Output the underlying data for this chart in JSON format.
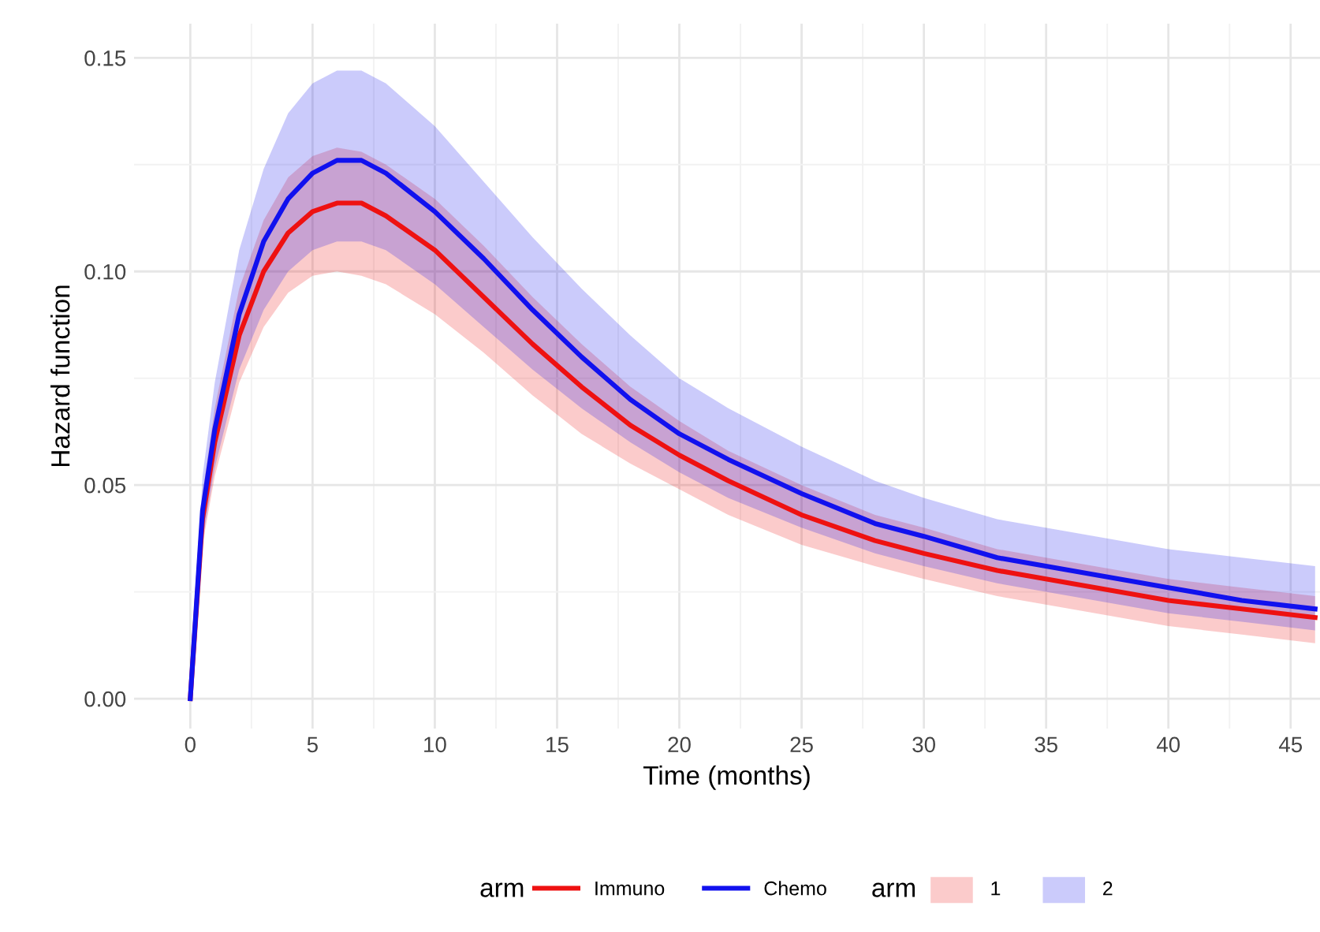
{
  "chart_data": {
    "type": "line",
    "xlabel": "Time (months)",
    "ylabel": "Hazard function",
    "legend_title": "arm",
    "x": [
      0,
      0.5,
      1,
      2,
      3,
      4,
      5,
      6,
      7,
      8,
      10,
      12,
      14,
      16,
      18,
      20,
      22,
      25,
      28,
      30,
      33,
      36,
      40,
      43,
      46
    ],
    "series": [
      {
        "name": "Immuno",
        "color": "#ee1111",
        "values": [
          0,
          0.042,
          0.06,
          0.085,
          0.1,
          0.109,
          0.114,
          0.116,
          0.116,
          0.113,
          0.105,
          0.094,
          0.083,
          0.073,
          0.064,
          0.057,
          0.051,
          0.043,
          0.037,
          0.034,
          0.03,
          0.027,
          0.023,
          0.021,
          0.019
        ],
        "upper": [
          0,
          0.048,
          0.068,
          0.096,
          0.112,
          0.122,
          0.127,
          0.129,
          0.128,
          0.125,
          0.117,
          0.106,
          0.094,
          0.083,
          0.073,
          0.065,
          0.058,
          0.05,
          0.043,
          0.04,
          0.035,
          0.032,
          0.028,
          0.026,
          0.024
        ],
        "lower": [
          0,
          0.036,
          0.052,
          0.074,
          0.087,
          0.095,
          0.099,
          0.1,
          0.099,
          0.097,
          0.09,
          0.081,
          0.071,
          0.062,
          0.055,
          0.049,
          0.043,
          0.036,
          0.031,
          0.028,
          0.024,
          0.021,
          0.017,
          0.015,
          0.013
        ]
      },
      {
        "name": "Chemo",
        "color": "#1111ee",
        "values": [
          0,
          0.044,
          0.063,
          0.09,
          0.107,
          0.117,
          0.123,
          0.126,
          0.126,
          0.123,
          0.114,
          0.103,
          0.091,
          0.08,
          0.07,
          0.062,
          0.056,
          0.048,
          0.041,
          0.038,
          0.033,
          0.03,
          0.026,
          0.023,
          0.021
        ],
        "upper": [
          0,
          0.052,
          0.074,
          0.105,
          0.124,
          0.137,
          0.144,
          0.147,
          0.147,
          0.144,
          0.134,
          0.121,
          0.108,
          0.096,
          0.085,
          0.075,
          0.068,
          0.059,
          0.051,
          0.047,
          0.042,
          0.039,
          0.035,
          0.033,
          0.031
        ],
        "lower": [
          0,
          0.037,
          0.054,
          0.077,
          0.091,
          0.1,
          0.105,
          0.107,
          0.107,
          0.105,
          0.097,
          0.087,
          0.077,
          0.068,
          0.06,
          0.053,
          0.047,
          0.04,
          0.034,
          0.031,
          0.027,
          0.024,
          0.02,
          0.018,
          0.016
        ]
      }
    ],
    "annotations": [
      "1",
      "2"
    ],
    "xlim": [
      -2.3,
      46.2
    ],
    "ylim": [
      -0.007,
      0.158
    ],
    "xticks": [
      0,
      5,
      10,
      15,
      20,
      25,
      30,
      35,
      40,
      45
    ],
    "yticks": [
      {
        "value": 0,
        "label": "0.00"
      },
      {
        "value": 0.05,
        "label": "0.05"
      },
      {
        "value": 0.1,
        "label": "0.10"
      },
      {
        "value": 0.15,
        "label": "0.15"
      }
    ],
    "grid": true,
    "legend": "bottom"
  }
}
